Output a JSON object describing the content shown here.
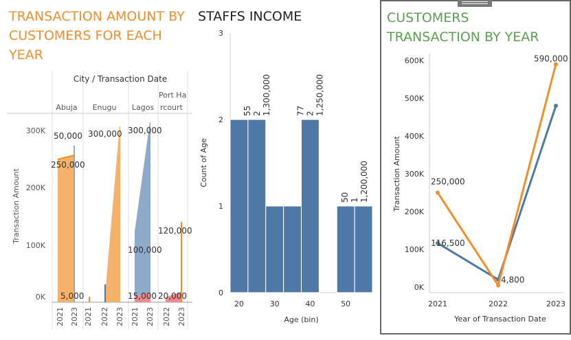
{
  "panel1": {
    "title": "TRANSACTION AMOUNT BY CUSTOMERS FOR EACH YEAR",
    "title_lines": [
      "TRANSACTION AMOUNT BY",
      "CUSTOMERS FOR EACH",
      "YEAR"
    ],
    "header": "City / Transaction Date",
    "cities": [
      "Abuja",
      "Enugu",
      "Lagos",
      "Port Ha rcourt"
    ],
    "city_lines": [
      [
        "Abuja"
      ],
      [
        "Enugu"
      ],
      [
        "Lagos"
      ],
      [
        "Port Ha",
        "rcourt"
      ]
    ],
    "ylabel": "Transaction Amount",
    "yticks": [
      "0K",
      "100K",
      "200K",
      "300K"
    ],
    "year_ticks": [
      "2021",
      "2023"
    ],
    "year_ticks_mid": [
      "2022",
      "2023"
    ],
    "labels": {
      "abuja_50000": "50,000",
      "abuja_250000": "250,000",
      "abuja_5000": "5,000",
      "enugu_300000": "300,000",
      "lagos_300000": "300,000",
      "lagos_100000": "100,000",
      "lagos_15000": "15,000",
      "ph_120000": "120,000",
      "ph_20000": "20,000"
    },
    "colors": {
      "orange": "#f28e2b",
      "orange_fill": "#f5b26b",
      "blue": "#4e79a7",
      "blue_fill": "#8eaac9",
      "red": "#e15759"
    }
  },
  "panel2": {
    "title": "STAFFS INCOME",
    "chart_data": {
      "type": "bar",
      "title": "STAFFS INCOME",
      "xlabel": "Age (bin)",
      "ylabel": "Count of Age",
      "xticks": [
        "20",
        "30",
        "40",
        "50"
      ],
      "yticks": [
        "0",
        "1",
        "2",
        "3"
      ],
      "ylim": [
        0,
        3
      ],
      "bins": [
        {
          "age": 20,
          "count": 2
        },
        {
          "age": 25,
          "count": 2
        },
        {
          "age": 30,
          "count": 1
        },
        {
          "age": 35,
          "count": 1
        },
        {
          "age": 40,
          "count": 2
        },
        {
          "age": 45,
          "count": 0
        },
        {
          "age": 50,
          "count": 1
        },
        {
          "age": 55,
          "count": 1
        }
      ],
      "annotations": [
        {
          "lines": [
            "55",
            "2",
            "1,300,000"
          ]
        },
        {
          "lines": [
            "77",
            "2",
            "1,250,000"
          ]
        },
        {
          "lines": [
            "50",
            "1",
            "1,200,000"
          ]
        }
      ],
      "color": "#4e79a7"
    }
  },
  "panel3": {
    "title": "CUSTOMERS TRANSACTION BY YEAR",
    "title_lines": [
      "CUSTOMERS",
      "TRANSACTION BY YEAR"
    ],
    "chart_data": {
      "type": "line",
      "xlabel": "Year of Transaction Date",
      "ylabel": "Transaction Amount",
      "x": [
        "2021",
        "2022",
        "2023"
      ],
      "ylim": [
        0,
        600000
      ],
      "yticks": [
        "0K",
        "100K",
        "200K",
        "300K",
        "400K",
        "500K",
        "600K"
      ],
      "series": [
        {
          "values": [
            116500,
            20000,
            480000
          ],
          "color": "#4e79a7"
        },
        {
          "values": [
            250000,
            4800,
            590000
          ],
          "color": "#f28e2b"
        }
      ],
      "data_labels": [
        "250,000",
        "116,500",
        "4,800",
        "590,000"
      ]
    }
  }
}
